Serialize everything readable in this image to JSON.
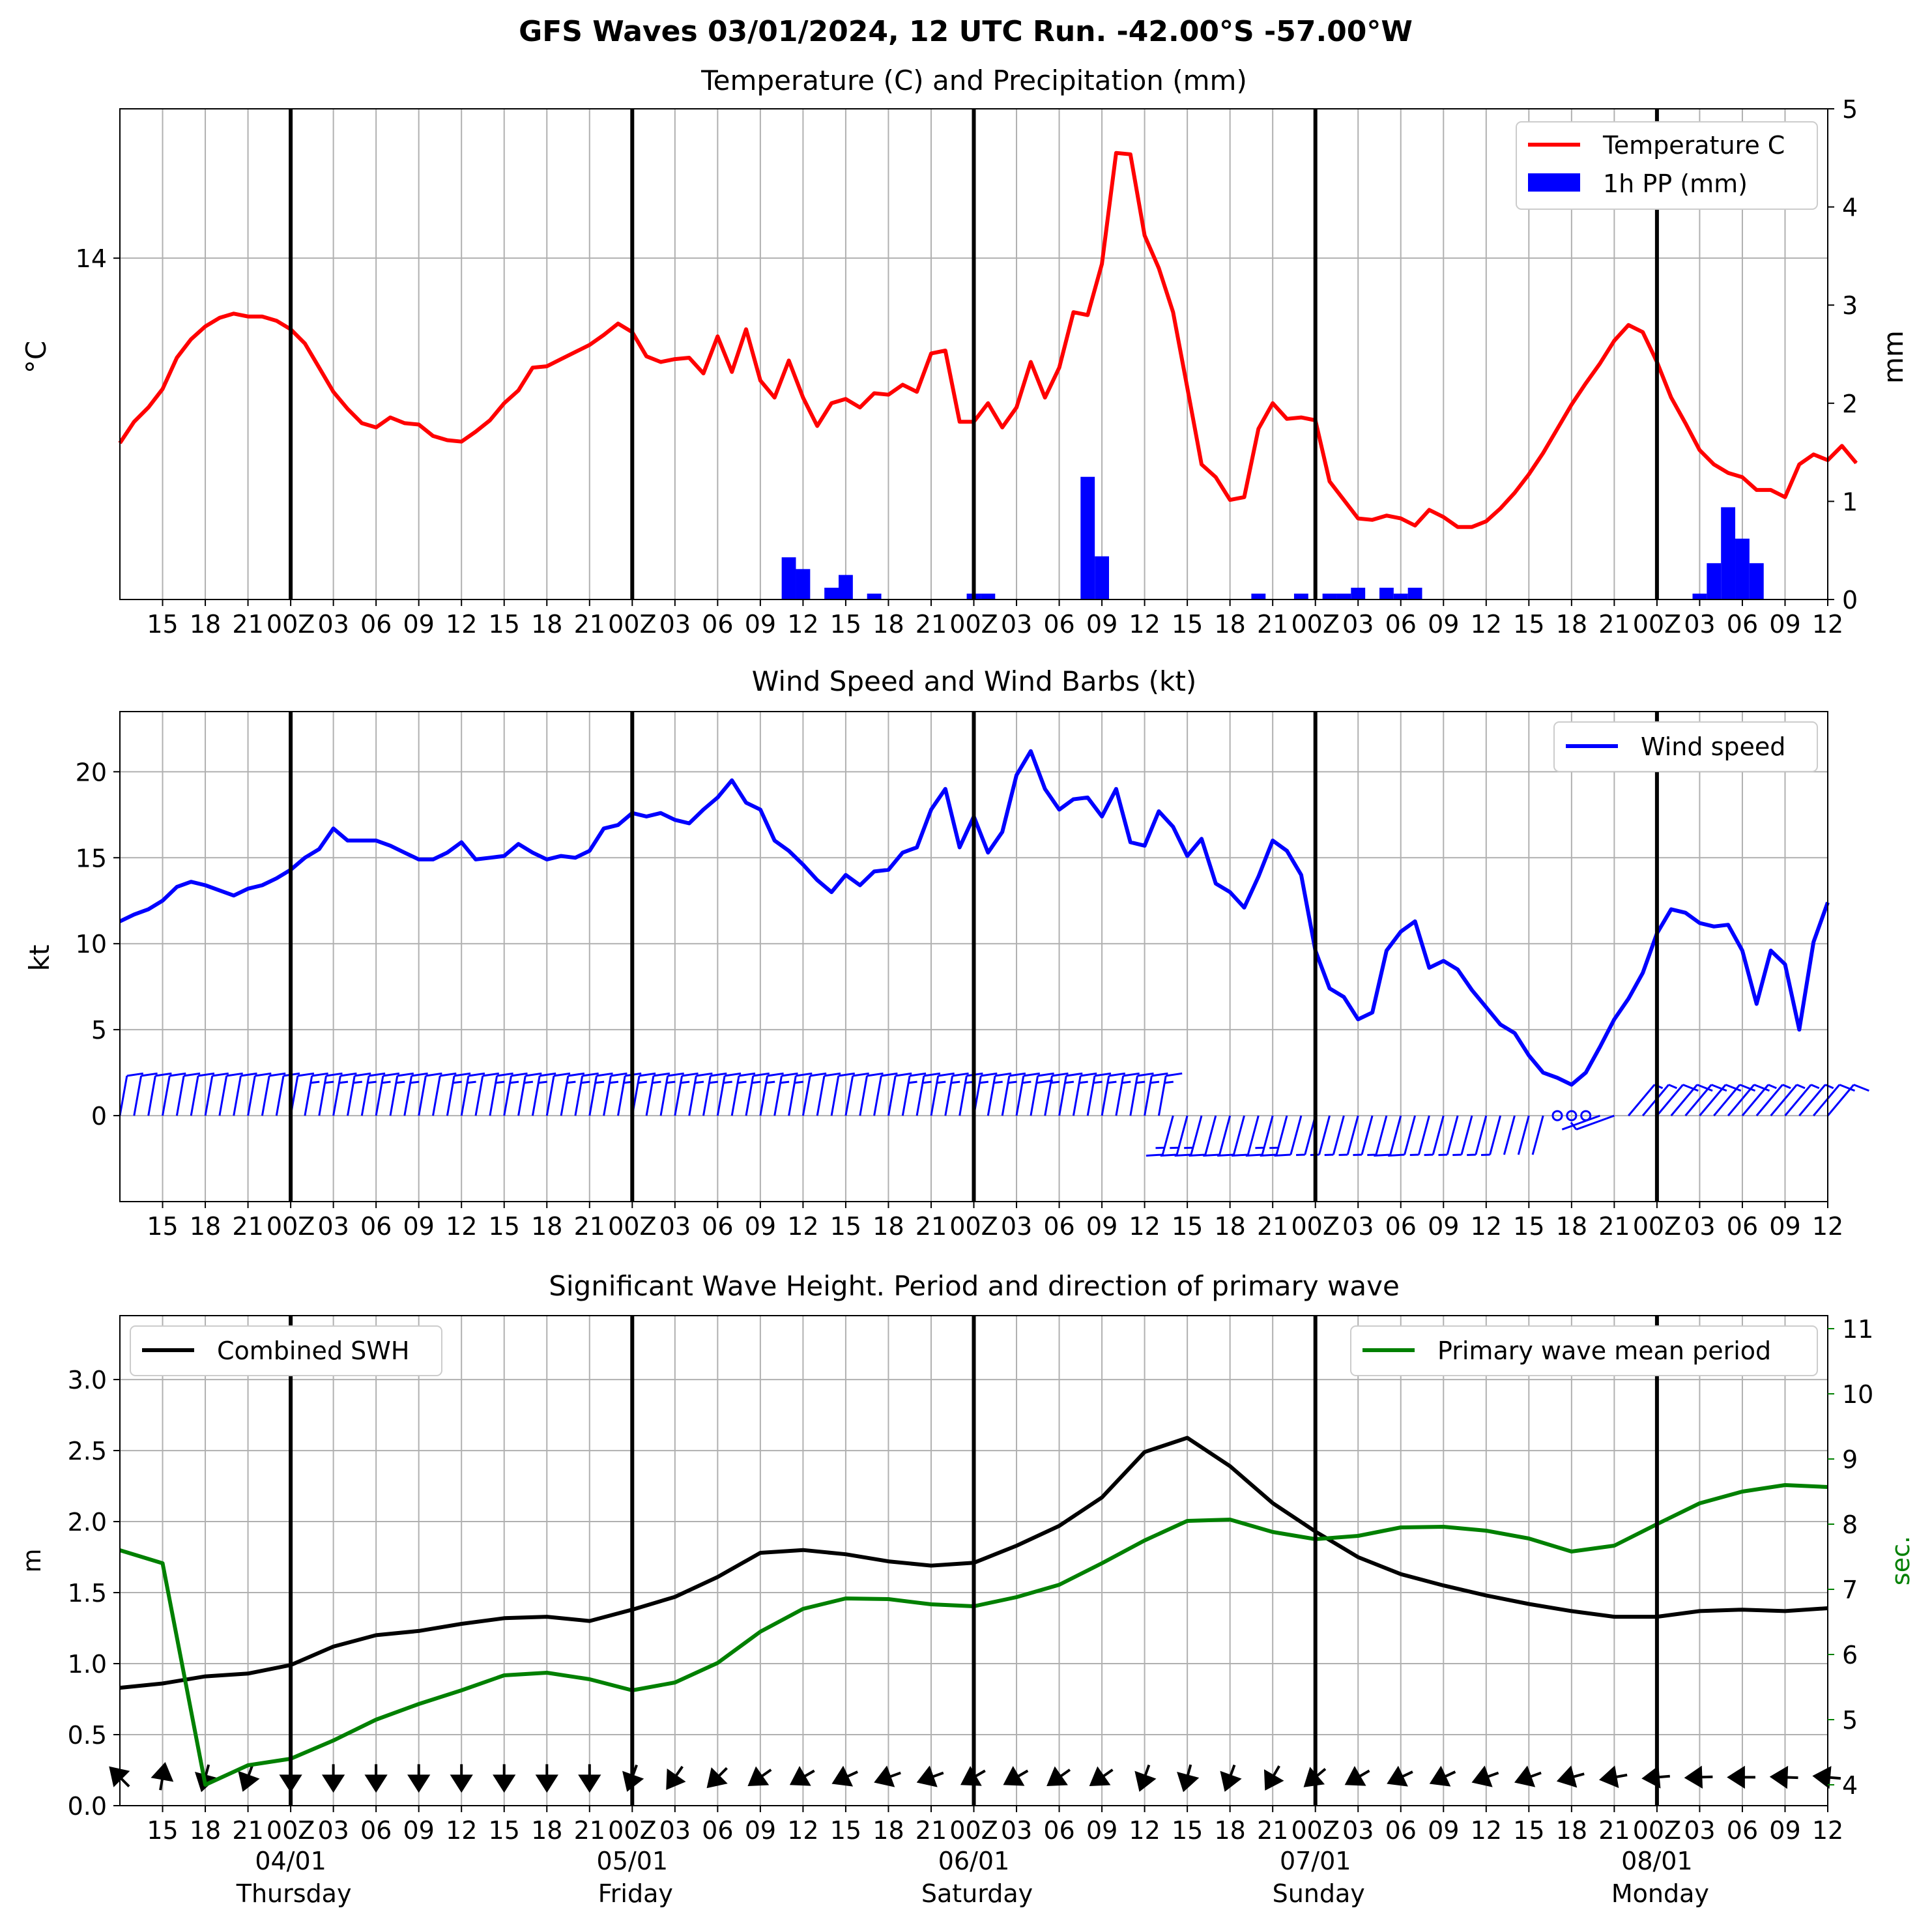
{
  "suptitle": "GFS Waves 03/01/2024, 12 UTC Run. -42.00°S -57.00°W",
  "colors": {
    "temperature": "#ff0000",
    "precipitation": "#0000ff",
    "wind": "#0000ff",
    "swh": "#000000",
    "period": "#008000",
    "grid": "#b0b0b0",
    "day_line": "#000000"
  },
  "x_axis": {
    "unit": "hours since 03/01/2024 12 UTC",
    "range": [
      0,
      120
    ],
    "tick_labels": [
      "15",
      "18",
      "21",
      "00Z",
      "03",
      "06",
      "09",
      "12",
      "15",
      "18",
      "21",
      "00Z",
      "03",
      "06",
      "09",
      "12",
      "15",
      "18",
      "21",
      "00Z",
      "03",
      "06",
      "09",
      "12",
      "15",
      "18",
      "21",
      "00Z",
      "03",
      "06",
      "09",
      "12",
      "15",
      "18",
      "21",
      "00Z",
      "03",
      "06",
      "09",
      "12"
    ],
    "day_lines": [
      12,
      36,
      60,
      84,
      108
    ],
    "days": [
      {
        "date": "04/01",
        "weekday": "Thursday"
      },
      {
        "date": "05/01",
        "weekday": "Friday"
      },
      {
        "date": "06/01",
        "weekday": "Saturday"
      },
      {
        "date": "07/01",
        "weekday": "Sunday"
      },
      {
        "date": "08/01",
        "weekday": "Monday"
      }
    ]
  },
  "chart_data": [
    {
      "type": "line",
      "title": "Temperature (C) and Precipitation (mm)",
      "ylabel": "°C",
      "ylabel_right": "mm",
      "y_ticks": [
        14
      ],
      "ylim": [
        11.6,
        15.05
      ],
      "y2_ticks": [
        0,
        1,
        2,
        3,
        4,
        5
      ],
      "y2lim": [
        0,
        5
      ],
      "legend_position": "top-right",
      "grid": true,
      "series": [
        {
          "name": "Temperature C",
          "axis": "left",
          "x_start": 0,
          "x_step": 1,
          "values": [
            12.7,
            12.85,
            12.95,
            13.08,
            13.3,
            13.43,
            13.52,
            13.58,
            13.61,
            13.59,
            13.59,
            13.56,
            13.5,
            13.4,
            13.23,
            13.06,
            12.94,
            12.84,
            12.81,
            12.88,
            12.84,
            12.83,
            12.75,
            12.72,
            12.71,
            12.78,
            12.86,
            12.98,
            13.07,
            13.23,
            13.24,
            13.29,
            13.34,
            13.39,
            13.46,
            13.54,
            13.48,
            13.31,
            13.27,
            13.29,
            13.3,
            13.19,
            13.45,
            13.2,
            13.5,
            13.14,
            13.02,
            13.28,
            13.02,
            12.82,
            12.98,
            13.01,
            12.95,
            13.05,
            13.04,
            13.11,
            13.06,
            13.33,
            13.35,
            12.85,
            12.85,
            12.98,
            12.81,
            12.95,
            13.27,
            13.02,
            13.23,
            13.62,
            13.6,
            13.96,
            14.74,
            14.73,
            14.16,
            13.93,
            13.62,
            13.09,
            12.55,
            12.46,
            12.3,
            12.32,
            12.8,
            12.98,
            12.87,
            12.88,
            12.86,
            12.43,
            12.3,
            12.17,
            12.16,
            12.19,
            12.17,
            12.12,
            12.23,
            12.18,
            12.11,
            12.11,
            12.15,
            12.24,
            12.35,
            12.48,
            12.63,
            12.8,
            12.97,
            13.12,
            13.26,
            13.42,
            13.53,
            13.48,
            13.27,
            13.02,
            12.84,
            12.65,
            12.55,
            12.49,
            12.46,
            12.37,
            12.37,
            12.32,
            12.55,
            12.62,
            12.58,
            12.68,
            12.56
          ]
        },
        {
          "name": "1h PP (mm)",
          "axis": "right",
          "type": "bar",
          "x_start": 0,
          "x_step": 1,
          "values": [
            0,
            0,
            0,
            0,
            0,
            0,
            0,
            0,
            0,
            0,
            0,
            0,
            0,
            0,
            0,
            0,
            0,
            0,
            0,
            0,
            0,
            0,
            0,
            0,
            0,
            0,
            0,
            0,
            0,
            0,
            0,
            0,
            0,
            0,
            0,
            0,
            0,
            0,
            0,
            0,
            0,
            0,
            0,
            0,
            0,
            0,
            0,
            0.43,
            0.31,
            0,
            0.12,
            0.25,
            0,
            0.06,
            0,
            0,
            0,
            0,
            0,
            0,
            0.06,
            0.06,
            0,
            0,
            0,
            0,
            0,
            0,
            1.25,
            0.44,
            0,
            0,
            0,
            0,
            0,
            0,
            0,
            0,
            0,
            0,
            0.06,
            0,
            0,
            0.06,
            0,
            0.06,
            0.06,
            0.12,
            0,
            0.12,
            0.06,
            0.12,
            0,
            0,
            0,
            0,
            0,
            0,
            0,
            0,
            0,
            0,
            0,
            0,
            0,
            0,
            0,
            0,
            0,
            0,
            0,
            0.06,
            0.37,
            0.94,
            0.62,
            0.37,
            0,
            0
          ]
        }
      ]
    },
    {
      "type": "line",
      "title": "Wind Speed and Wind Barbs (kt)",
      "ylabel": "kt",
      "y_ticks": [
        0,
        5,
        10,
        15,
        20
      ],
      "ylim": [
        -5,
        23.5
      ],
      "legend_position": "top-right",
      "grid": true,
      "series": [
        {
          "name": "Wind speed",
          "x_start": 0,
          "x_step": 1,
          "values": [
            11.3,
            11.7,
            12.0,
            12.5,
            13.3,
            13.6,
            13.4,
            13.1,
            12.8,
            13.2,
            13.4,
            13.8,
            14.3,
            15.0,
            15.5,
            16.7,
            16.0,
            16.0,
            16.0,
            15.7,
            15.3,
            14.9,
            14.9,
            15.3,
            15.9,
            14.9,
            15.0,
            15.1,
            15.8,
            15.3,
            14.9,
            15.1,
            15.0,
            15.4,
            16.7,
            16.9,
            17.6,
            17.4,
            17.6,
            17.2,
            17.0,
            17.8,
            18.5,
            19.5,
            18.2,
            17.8,
            16.0,
            15.4,
            14.6,
            13.7,
            13.0,
            14.0,
            13.4,
            14.2,
            14.3,
            15.3,
            15.6,
            17.8,
            19.0,
            15.6,
            17.4,
            15.3,
            16.5,
            19.8,
            21.2,
            19.0,
            17.8,
            18.4,
            18.5,
            17.4,
            19.0,
            15.9,
            15.7,
            17.7,
            16.8,
            15.1,
            16.1,
            13.5,
            13.0,
            12.1,
            13.9,
            16.0,
            15.4,
            14.0,
            9.6,
            7.4,
            6.9,
            5.6,
            6.0,
            9.6,
            10.7,
            11.3,
            8.6,
            9.0,
            8.5,
            7.3,
            6.3,
            5.3,
            4.8,
            3.5,
            2.5,
            2.2,
            1.8,
            2.5,
            4.0,
            5.6,
            6.8,
            8.3,
            10.6,
            12.0,
            11.8,
            11.2,
            11.0,
            11.1,
            9.6,
            6.5,
            9.6,
            8.8,
            5.0,
            10.1,
            12.4
          ]
        }
      ],
      "barbs": {
        "baseline": 0,
        "x_start": 0,
        "x_end": 120,
        "x_step": 1,
        "to_angle_note": "direction wind blows toward, degrees (0 = north, clockwise)",
        "segments": [
          {
            "from": 0,
            "to": 73,
            "toward_deg": 10
          },
          {
            "from": 74,
            "to": 100,
            "toward_deg": 195
          },
          {
            "from": 101,
            "to": 103,
            "toward_deg": null
          },
          {
            "from": 104,
            "to": 105,
            "toward_deg": 250
          },
          {
            "from": 106,
            "to": 120,
            "toward_deg": 40
          }
        ]
      }
    },
    {
      "type": "line",
      "title": "Significant Wave Height. Period and direction of primary wave",
      "ylabel": "m",
      "ylabel_right": "sec.",
      "y_ticks": [
        0.0,
        0.5,
        1.0,
        1.5,
        2.0,
        2.5,
        3.0
      ],
      "ylim": [
        0,
        3.45
      ],
      "y2_ticks": [
        4,
        5,
        6,
        7,
        8,
        9,
        10,
        11
      ],
      "y2lim": [
        3.68,
        11.2
      ],
      "legend_left": "top-left",
      "legend_right": "top-right",
      "grid": true,
      "series": [
        {
          "name": "Combined SWH",
          "axis": "left",
          "x_start": 0,
          "x_step": 3,
          "values": [
            0.83,
            0.86,
            0.91,
            0.93,
            0.99,
            1.12,
            1.2,
            1.23,
            1.28,
            1.32,
            1.33,
            1.3,
            1.38,
            1.47,
            1.61,
            1.78,
            1.8,
            1.77,
            1.72,
            1.69,
            1.71,
            1.83,
            1.97,
            2.17,
            2.49,
            2.59,
            2.39,
            2.13,
            1.93,
            1.75,
            1.63,
            1.55,
            1.48,
            1.42,
            1.37,
            1.33,
            1.33,
            1.37,
            1.38,
            1.37,
            1.39
          ]
        },
        {
          "name": "Primary wave mean period",
          "axis": "right",
          "x_start": 0,
          "x_step": 3,
          "values": [
            7.6,
            7.4,
            4.0,
            4.3,
            4.4,
            4.68,
            5.0,
            5.24,
            5.45,
            5.68,
            5.72,
            5.62,
            5.45,
            5.57,
            5.87,
            6.35,
            6.7,
            6.86,
            6.85,
            6.77,
            6.74,
            6.88,
            7.07,
            7.4,
            7.75,
            8.05,
            8.07,
            7.88,
            7.77,
            7.82,
            7.95,
            7.96,
            7.9,
            7.78,
            7.58,
            7.67,
            8.0,
            8.32,
            8.5,
            8.6,
            8.57
          ]
        }
      ],
      "direction_arrows": {
        "baseline_m": 0.2,
        "x_start": 0,
        "x_step": 3,
        "toward_deg": [
          315,
          10,
          195,
          200,
          180,
          180,
          180,
          180,
          180,
          180,
          180,
          180,
          200,
          215,
          225,
          235,
          240,
          245,
          250,
          250,
          240,
          240,
          235,
          235,
          200,
          195,
          200,
          210,
          230,
          240,
          245,
          245,
          250,
          250,
          255,
          260,
          265,
          268,
          270,
          272,
          275
        ]
      }
    }
  ]
}
